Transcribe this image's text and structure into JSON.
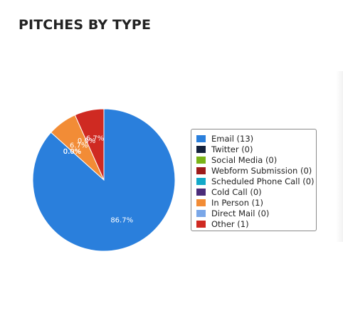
{
  "title": "PITCHES BY TYPE",
  "chart_data": {
    "type": "pie",
    "title": "PITCHES BY TYPE",
    "legend_position": "right",
    "start": "12 o'clock, clockwise",
    "slices": [
      {
        "name": "Email",
        "value": 13,
        "color": "#2a7fdc",
        "label": "86.7%",
        "legend": "Email (13)"
      },
      {
        "name": "Twitter",
        "value": 0,
        "color": "#14213d",
        "label": "0.0%",
        "legend": "Twitter (0)"
      },
      {
        "name": "Social Media",
        "value": 0,
        "color": "#7ab317",
        "label": "0.0%",
        "legend": "Social Media (0)"
      },
      {
        "name": "Webform Submission",
        "value": 0,
        "color": "#9e1b1b",
        "label": "0.0%",
        "legend": "Webform Submission (0)"
      },
      {
        "name": "Scheduled Phone Call",
        "value": 0,
        "color": "#13a9c9",
        "label": "0.0%",
        "legend": "Scheduled Phone Call (0)"
      },
      {
        "name": "Cold Call",
        "value": 0,
        "color": "#4b2c7a",
        "label": "0.0%",
        "legend": "Cold Call (0)"
      },
      {
        "name": "In Person",
        "value": 1,
        "color": "#f28c36",
        "label": "6.7%",
        "legend": "In Person (1)"
      },
      {
        "name": "Direct Mail",
        "value": 0,
        "color": "#7aa7e8",
        "label": "0.0%",
        "legend": "Direct Mail (0)"
      },
      {
        "name": "Other",
        "value": 1,
        "color": "#cf2a22",
        "label": "6.7%",
        "legend": "Other (1)"
      }
    ]
  }
}
